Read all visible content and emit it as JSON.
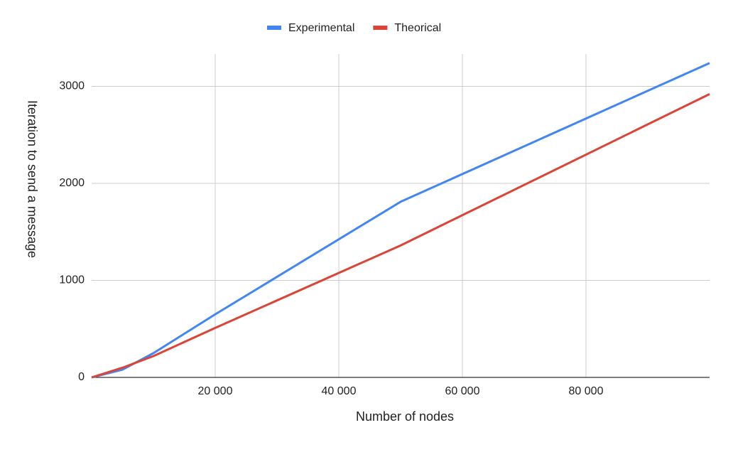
{
  "chart_data": {
    "type": "line",
    "x_label": "Number of nodes",
    "y_label": "Iteration to send a message",
    "x": [
      0,
      5000,
      10000,
      20000,
      50000,
      100000
    ],
    "series": [
      {
        "name": "Experimental",
        "color": "#4285f4",
        "values": [
          0,
          80,
          250,
          650,
          1810,
          3240
        ]
      },
      {
        "name": "Theorical",
        "color": "#db4437",
        "values": [
          0,
          100,
          220,
          510,
          1360,
          2920
        ]
      }
    ],
    "xlim": [
      0,
      100000
    ],
    "ylim": [
      0,
      3333
    ],
    "xticks": [
      {
        "value": 20000,
        "label": "20 000"
      },
      {
        "value": 40000,
        "label": "40 000"
      },
      {
        "value": 60000,
        "label": "60 000"
      },
      {
        "value": 80000,
        "label": "80 000"
      }
    ],
    "yticks": [
      0,
      1000,
      2000,
      3000
    ],
    "grid": true,
    "legend": "top"
  }
}
